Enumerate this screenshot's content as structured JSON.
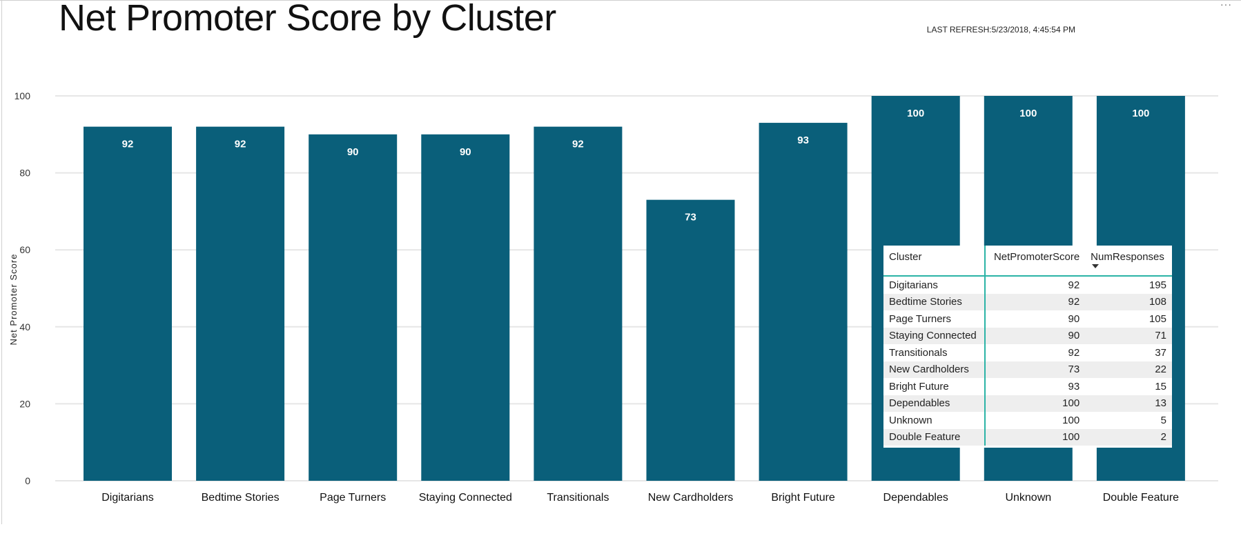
{
  "header": {
    "title": "Net Promoter Score by Cluster",
    "refresh": "LAST REFRESH:5/23/2018, 4:45:54 PM",
    "more_icon": "ellipsis-icon"
  },
  "chart_data": {
    "type": "bar",
    "title": "Net Promoter Score by Cluster",
    "xlabel": "",
    "ylabel": "Net Promoter Score",
    "ylim": [
      0,
      100
    ],
    "yticks": [
      "0",
      "20",
      "40",
      "60",
      "80",
      "100"
    ],
    "grid": true,
    "bar_color": "#0a5f7a",
    "categories": [
      "Digitarians",
      "Bedtime Stories",
      "Page Turners",
      "Staying Connected",
      "Transitionals",
      "New Cardholders",
      "Bright Future",
      "Dependables",
      "Unknown",
      "Double Feature"
    ],
    "values": [
      92,
      92,
      90,
      90,
      92,
      73,
      93,
      100,
      100,
      100
    ],
    "data_labels": [
      "92",
      "92",
      "90",
      "90",
      "92",
      "73",
      "93",
      "100",
      "100",
      "100"
    ]
  },
  "table": {
    "columns": [
      "Cluster",
      "NetPromoterScore",
      "NumResponses"
    ],
    "rows": [
      [
        "Digitarians",
        "92",
        "195"
      ],
      [
        "Bedtime Stories",
        "92",
        "108"
      ],
      [
        "Page Turners",
        "90",
        "105"
      ],
      [
        "Staying Connected",
        "90",
        "71"
      ],
      [
        "Transitionals",
        "92",
        "37"
      ],
      [
        "New Cardholders",
        "73",
        "22"
      ],
      [
        "Bright Future",
        "93",
        "15"
      ],
      [
        "Dependables",
        "100",
        "13"
      ],
      [
        "Unknown",
        "100",
        "5"
      ],
      [
        "Double Feature",
        "100",
        "2"
      ]
    ]
  },
  "colors": {
    "accent_line": "#2ab3a6",
    "bar": "#0a5f7a"
  }
}
